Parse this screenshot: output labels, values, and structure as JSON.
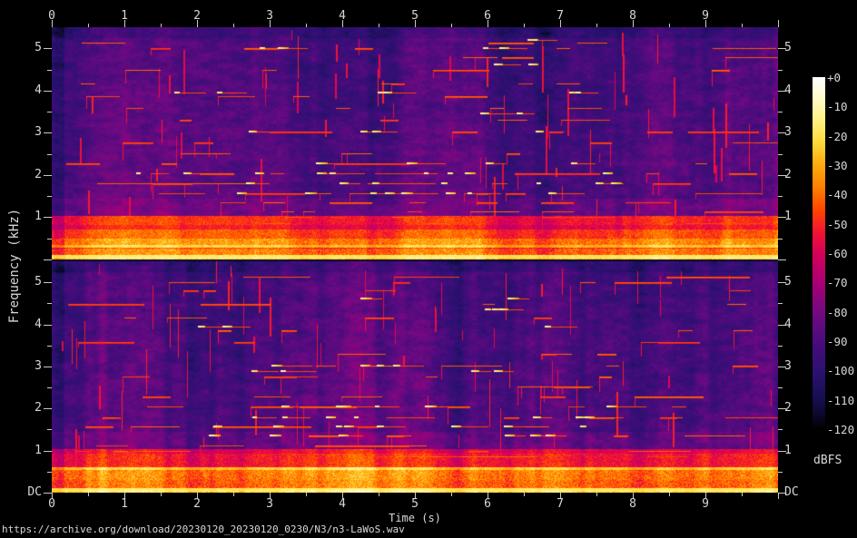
{
  "chart_data": {
    "type": "heatmap",
    "subtype": "audio-spectrogram-stereo",
    "comment_url": "https://archive.org/download/20230120_20230120_0230/N3/n3-LaWoS.wav",
    "x_axis": {
      "label": "Time (s)",
      "min": 0,
      "max": 10,
      "major_tick_step_s": 1,
      "minor_tick_step_s": 0.5,
      "tick_labels": [
        "0",
        "1",
        "2",
        "3",
        "4",
        "5",
        "6",
        "7",
        "8",
        "9"
      ]
    },
    "y_axis": {
      "label": "Frequency (kHz)",
      "min_khz": 0,
      "max_khz": 5.5,
      "major_tick_step_khz": 1,
      "minor_tick_step_khz": 0.5,
      "integer_labels": [
        "1",
        "2",
        "3",
        "4",
        "5"
      ],
      "dc_label": "DC"
    },
    "colorbar": {
      "unit_label": "dBFS",
      "max_db": 0,
      "min_db": -120,
      "tick_step_db": 10,
      "tick_labels": [
        "+0",
        "-10",
        "-20",
        "-30",
        "-40",
        "-50",
        "-60",
        "-70",
        "-80",
        "-90",
        "-100",
        "-110",
        "-120"
      ],
      "palette_stops": [
        [
          0,
          "#ffffff"
        ],
        [
          -5,
          "#fffbdc"
        ],
        [
          -13,
          "#fff493"
        ],
        [
          -21,
          "#ffdf43"
        ],
        [
          -29,
          "#ffae12"
        ],
        [
          -37,
          "#ff8300"
        ],
        [
          -45,
          "#ff4600"
        ],
        [
          -53,
          "#f31135"
        ],
        [
          -61,
          "#d1005c"
        ],
        [
          -71,
          "#a40077"
        ],
        [
          -81,
          "#6f0a82"
        ],
        [
          -91,
          "#470c7c"
        ],
        [
          -101,
          "#2a1170"
        ],
        [
          -110,
          "#160e4e"
        ],
        [
          -116,
          "#090722"
        ],
        [
          -120,
          "#000000"
        ]
      ]
    },
    "channels": [
      {
        "name": "channel-1-top",
        "seed": 1337,
        "vlines": 70,
        "bands": [
          [
            0,
            0.06,
            -20,
            7
          ],
          [
            0.06,
            0.26,
            -37,
            9
          ],
          [
            0.26,
            0.3,
            -47,
            6
          ],
          [
            0.3,
            0.36,
            -23,
            5
          ],
          [
            0.36,
            0.5,
            -34,
            9
          ],
          [
            0.5,
            0.73,
            -43,
            7
          ],
          [
            0.73,
            0.82,
            -53,
            6
          ],
          [
            0.82,
            1.04,
            -49,
            6
          ]
        ],
        "rows": [
          {
            "f": 0.86,
            "n": 6
          },
          {
            "f": 1.0,
            "n": 7
          },
          {
            "f": 1.13,
            "n": 6
          },
          {
            "f": 1.35,
            "n": 7
          },
          {
            "f": 1.57,
            "n": 8
          },
          {
            "f": 1.8,
            "n": 8
          },
          {
            "f": 2.05,
            "n": 8
          },
          {
            "f": 2.28,
            "n": 7
          },
          {
            "f": 2.52,
            "n": 5
          },
          {
            "f": 2.77,
            "n": 5
          },
          {
            "f": 3.03,
            "n": 6
          },
          {
            "f": 3.3,
            "n": 4
          },
          {
            "f": 3.58,
            "n": 4
          },
          {
            "f": 3.87,
            "n": 4
          },
          {
            "f": 4.17,
            "n": 5
          },
          {
            "f": 4.48,
            "n": 4
          },
          {
            "f": 4.8,
            "n": 4
          },
          {
            "f": 5.0,
            "n": 5
          },
          {
            "f": 5.13,
            "n": 3
          }
        ],
        "tones": [
          {
            "f": 1.57,
            "ranges": [
              [
                2.3,
                7.9
              ]
            ],
            "n": 8
          },
          {
            "f": 1.8,
            "ranges": [
              [
                2.4,
                7.8
              ]
            ],
            "n": 7
          },
          {
            "f": 2.05,
            "ranges": [
              [
                1.0,
                7.9
              ]
            ],
            "n": 9
          },
          {
            "f": 2.28,
            "ranges": [
              [
                3.3,
                7.5
              ]
            ],
            "n": 4
          },
          {
            "f": 3.03,
            "ranges": [
              [
                2.7,
                6.7
              ]
            ],
            "n": 5
          },
          {
            "f": 3.45,
            "ranges": [
              [
                5.9,
                6.5
              ]
            ],
            "n": 2
          },
          {
            "f": 3.95,
            "ranges": [
              [
                1.1,
                2.3
              ],
              [
                4.2,
                5.1
              ],
              [
                6.9,
                7.3
              ]
            ],
            "n": 6
          },
          {
            "f": 4.62,
            "ranges": [
              [
                5.5,
                6.6
              ]
            ],
            "n": 2
          },
          {
            "f": 5.0,
            "ranges": [
              [
                2.8,
                3.2
              ],
              [
                5.8,
                6.6
              ]
            ],
            "n": 4
          },
          {
            "f": 5.2,
            "ranges": [
              [
                6.1,
                7.4
              ]
            ],
            "n": 2
          }
        ]
      },
      {
        "name": "channel-2-bottom",
        "seed": 4242,
        "vlines": 70,
        "bands": [
          [
            0,
            0.07,
            -19,
            7
          ],
          [
            0.07,
            0.31,
            -38,
            9
          ],
          [
            0.31,
            0.54,
            -35,
            9
          ],
          [
            0.54,
            0.61,
            -22,
            5
          ],
          [
            0.61,
            0.66,
            -49,
            6
          ],
          [
            0.66,
            0.93,
            -50,
            7
          ],
          [
            0.93,
            1.04,
            -55,
            6
          ]
        ],
        "rows": [
          {
            "f": 0.86,
            "n": 5
          },
          {
            "f": 1.0,
            "n": 6
          },
          {
            "f": 1.13,
            "n": 6
          },
          {
            "f": 1.35,
            "n": 7
          },
          {
            "f": 1.57,
            "n": 8
          },
          {
            "f": 1.8,
            "n": 8
          },
          {
            "f": 2.05,
            "n": 7
          },
          {
            "f": 2.28,
            "n": 6
          },
          {
            "f": 2.52,
            "n": 5
          },
          {
            "f": 2.77,
            "n": 5
          },
          {
            "f": 3.03,
            "n": 5
          },
          {
            "f": 3.3,
            "n": 4
          },
          {
            "f": 3.58,
            "n": 4
          },
          {
            "f": 3.87,
            "n": 4
          },
          {
            "f": 4.17,
            "n": 4
          },
          {
            "f": 4.48,
            "n": 4
          },
          {
            "f": 4.8,
            "n": 4
          },
          {
            "f": 5.0,
            "n": 4
          },
          {
            "f": 5.13,
            "n": 3
          }
        ],
        "tones": [
          {
            "f": 1.35,
            "ranges": [
              [
                1.8,
                7.6
              ]
            ],
            "n": 6
          },
          {
            "f": 1.57,
            "ranges": [
              [
                2.2,
                7.8
              ]
            ],
            "n": 8
          },
          {
            "f": 1.8,
            "ranges": [
              [
                2.4,
                7.7
              ]
            ],
            "n": 7
          },
          {
            "f": 2.05,
            "ranges": [
              [
                2.4,
                7.9
              ]
            ],
            "n": 7
          },
          {
            "f": 2.9,
            "ranges": [
              [
                2.6,
                3.6
              ],
              [
                5.2,
                6.2
              ]
            ],
            "n": 4
          },
          {
            "f": 3.03,
            "ranges": [
              [
                2.7,
                6.9
              ]
            ],
            "n": 4
          },
          {
            "f": 3.95,
            "ranges": [
              [
                2.0,
                2.4
              ],
              [
                6.3,
                6.8
              ]
            ],
            "n": 3
          },
          {
            "f": 4.35,
            "ranges": [
              [
                5.9,
                7.2
              ]
            ],
            "n": 3
          },
          {
            "f": 4.62,
            "ranges": [
              [
                3.9,
                4.3
              ],
              [
                6.2,
                6.6
              ]
            ],
            "n": 2
          }
        ]
      }
    ]
  }
}
